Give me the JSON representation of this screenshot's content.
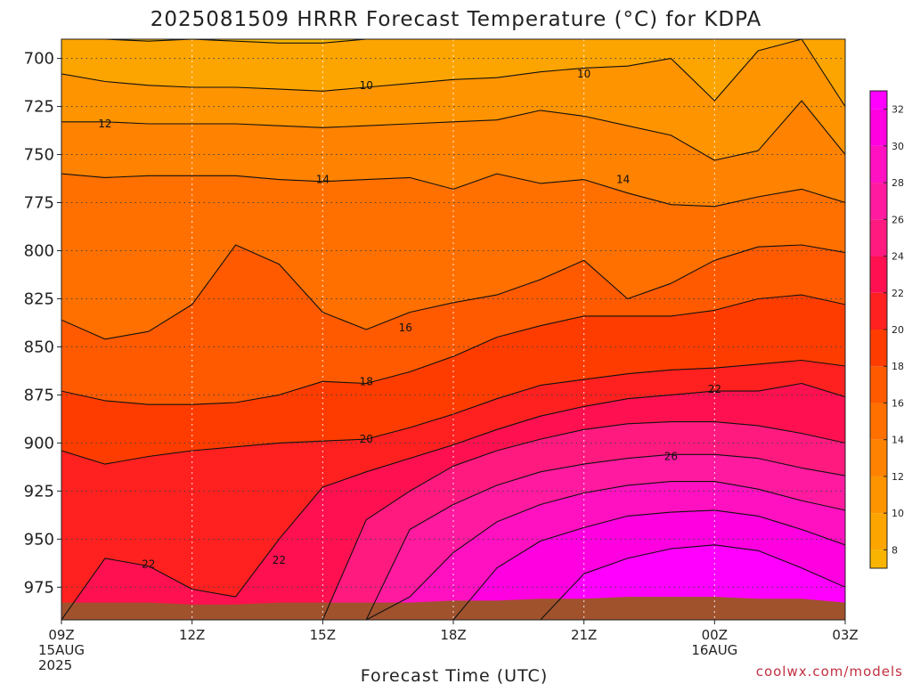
{
  "chart_data": {
    "type": "heatmap",
    "title": "2025081509 HRRR Forecast Temperature (°C) for KDPA",
    "xlabel": "Forecast Time (UTC)",
    "ylabel": "",
    "credit": "coolwx.com/models",
    "x_ticks": [
      {
        "h": 0,
        "lines": [
          "09Z",
          "15AUG",
          "2025"
        ]
      },
      {
        "h": 3,
        "lines": [
          "12Z"
        ]
      },
      {
        "h": 6,
        "lines": [
          "15Z"
        ]
      },
      {
        "h": 9,
        "lines": [
          "18Z"
        ]
      },
      {
        "h": 12,
        "lines": [
          "21Z"
        ]
      },
      {
        "h": 15,
        "lines": [
          "00Z",
          "16AUG"
        ]
      },
      {
        "h": 18,
        "lines": [
          "03Z"
        ]
      }
    ],
    "xlim": [
      0,
      18
    ],
    "y_ticks": [
      700,
      725,
      750,
      775,
      800,
      825,
      850,
      875,
      900,
      925,
      950,
      975
    ],
    "ylim": [
      690,
      992
    ],
    "colorbar": {
      "ticks": [
        8,
        10,
        12,
        14,
        16,
        18,
        20,
        22,
        24,
        26,
        28,
        30,
        32
      ],
      "range": [
        7,
        33
      ],
      "colors": [
        "#f8b400",
        "#fca500",
        "#fe9400",
        "#ff8200",
        "#ff7000",
        "#ff5a00",
        "#ff3c00",
        "#ff2020",
        "#ff1050",
        "#ff1a80",
        "#ff1aa0",
        "#ff10c0",
        "#ff00e0",
        "#ff00ff"
      ]
    },
    "hours": [
      0,
      1,
      2,
      3,
      4,
      5,
      6,
      7,
      8,
      9,
      10,
      11,
      12,
      13,
      14,
      15,
      16,
      17,
      18
    ],
    "isotherms": [
      {
        "t": 8,
        "p": [
          690,
          690,
          691,
          690,
          691,
          692,
          692,
          690,
          690,
          690,
          690,
          690,
          690,
          690,
          690,
          690,
          690,
          690,
          690
        ]
      },
      {
        "t": 10,
        "p": [
          708,
          712,
          714,
          715,
          715,
          716,
          717,
          715,
          713,
          711,
          710,
          707,
          705,
          704,
          700,
          722,
          696,
          690,
          725
        ]
      },
      {
        "t": 12,
        "p": [
          733,
          733,
          734,
          734,
          734,
          735,
          736,
          735,
          734,
          733,
          732,
          727,
          730,
          735,
          740,
          753,
          748,
          722,
          750
        ]
      },
      {
        "t": 14,
        "p": [
          760,
          762,
          761,
          761,
          761,
          763,
          764,
          763,
          762,
          768,
          760,
          765,
          763,
          770,
          776,
          777,
          772,
          768,
          775
        ]
      },
      {
        "t": 16,
        "p": [
          836,
          846,
          842,
          828,
          797,
          807,
          832,
          841,
          832,
          827,
          823,
          815,
          805,
          825,
          817,
          805,
          798,
          797,
          801
        ]
      },
      {
        "t": 18,
        "p": [
          873,
          878,
          880,
          880,
          879,
          875,
          868,
          869,
          863,
          855,
          845,
          839,
          834,
          834,
          834,
          831,
          825,
          823,
          828
        ]
      },
      {
        "t": 20,
        "p": [
          904,
          911,
          907,
          904,
          902,
          900,
          899,
          898,
          892,
          885,
          877,
          870,
          867,
          864,
          862,
          861,
          859,
          857,
          860
        ]
      },
      {
        "t": 22,
        "p": [
          992,
          960,
          964,
          976,
          980,
          950,
          923,
          915,
          908,
          901,
          893,
          886,
          881,
          877,
          875,
          873,
          873,
          869,
          876
        ]
      },
      {
        "t": 24,
        "p": [
          992,
          992,
          992,
          992,
          992,
          992,
          992,
          940,
          925,
          912,
          904,
          898,
          893,
          890,
          889,
          889,
          891,
          895,
          900
        ]
      },
      {
        "t": 26,
        "p": [
          992,
          992,
          992,
          992,
          992,
          992,
          992,
          992,
          945,
          932,
          922,
          915,
          911,
          908,
          906,
          906,
          908,
          913,
          917
        ]
      },
      {
        "t": 28,
        "p": [
          992,
          992,
          992,
          992,
          992,
          992,
          992,
          992,
          980,
          957,
          941,
          932,
          926,
          922,
          920,
          920,
          924,
          930,
          935
        ]
      },
      {
        "t": 30,
        "p": [
          992,
          992,
          992,
          992,
          992,
          992,
          992,
          992,
          992,
          992,
          965,
          951,
          944,
          938,
          936,
          935,
          938,
          945,
          953
        ]
      },
      {
        "t": 32,
        "p": [
          992,
          992,
          992,
          992,
          992,
          992,
          992,
          992,
          992,
          992,
          992,
          992,
          968,
          960,
          955,
          953,
          956,
          965,
          975
        ]
      }
    ],
    "contour_labels": [
      {
        "text": "10",
        "h": 7.0,
        "p": 714
      },
      {
        "text": "10",
        "h": 12.0,
        "p": 708
      },
      {
        "text": "12",
        "h": 1.0,
        "p": 734
      },
      {
        "text": "14",
        "h": 6.0,
        "p": 763
      },
      {
        "text": "14",
        "h": 12.9,
        "p": 763
      },
      {
        "text": "16",
        "h": 7.9,
        "p": 840
      },
      {
        "text": "18",
        "h": 7.0,
        "p": 868
      },
      {
        "text": "20",
        "h": 7.0,
        "p": 898
      },
      {
        "text": "22",
        "h": 15.0,
        "p": 872
      },
      {
        "text": "22",
        "h": 2.0,
        "p": 963
      },
      {
        "text": "22",
        "h": 5.0,
        "p": 961
      },
      {
        "text": "26",
        "h": 14.0,
        "p": 907
      }
    ],
    "ground_p": [
      983,
      983,
      983,
      984,
      984,
      983,
      983,
      983,
      983,
      982,
      982,
      981,
      981,
      980,
      980,
      980,
      981,
      981,
      983
    ]
  }
}
